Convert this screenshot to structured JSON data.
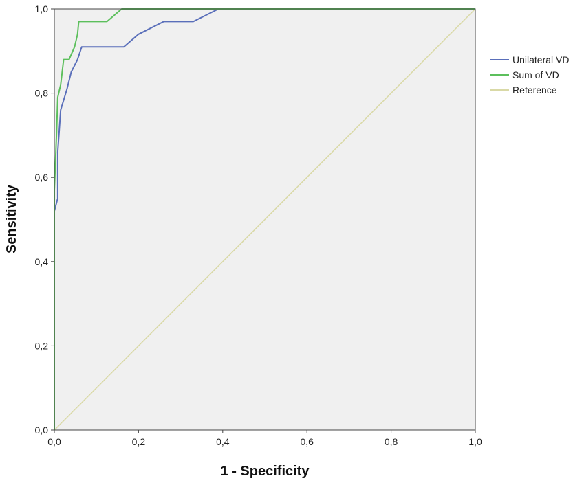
{
  "chart_data": {
    "type": "line",
    "title": "",
    "xlabel": "1 - Specificity",
    "ylabel": "Sensitivity",
    "xlim": [
      0,
      1
    ],
    "ylim": [
      0,
      1
    ],
    "x_ticks": [
      "0,0",
      "0,2",
      "0,4",
      "0,6",
      "0,8",
      "1,0"
    ],
    "y_ticks": [
      "0,0",
      "0,2",
      "0,4",
      "0,6",
      "0,8",
      "1,0"
    ],
    "grid": false,
    "plot_background": "#f0f0f0",
    "legend_position": "right",
    "series": [
      {
        "name": "Unilateral VD",
        "color": "#5a6fba",
        "points": [
          [
            0,
            0
          ],
          [
            0,
            0.52
          ],
          [
            0.008,
            0.55
          ],
          [
            0.008,
            0.66
          ],
          [
            0.015,
            0.76
          ],
          [
            0.03,
            0.81
          ],
          [
            0.04,
            0.85
          ],
          [
            0.055,
            0.88
          ],
          [
            0.065,
            0.91
          ],
          [
            0.165,
            0.91
          ],
          [
            0.2,
            0.94
          ],
          [
            0.26,
            0.97
          ],
          [
            0.33,
            0.97
          ],
          [
            0.39,
            1.0
          ],
          [
            1.0,
            1.0
          ]
        ]
      },
      {
        "name": "Sum of VD",
        "color": "#5cbf5c",
        "points": [
          [
            0,
            0
          ],
          [
            0,
            0.57
          ],
          [
            0.005,
            0.7
          ],
          [
            0.008,
            0.79
          ],
          [
            0.015,
            0.82
          ],
          [
            0.022,
            0.88
          ],
          [
            0.035,
            0.88
          ],
          [
            0.048,
            0.91
          ],
          [
            0.055,
            0.94
          ],
          [
            0.058,
            0.97
          ],
          [
            0.125,
            0.97
          ],
          [
            0.16,
            1.0
          ],
          [
            1.0,
            1.0
          ]
        ]
      },
      {
        "name": "Reference",
        "color": "#d9d9a6",
        "points": [
          [
            0,
            0
          ],
          [
            1,
            1
          ]
        ]
      }
    ]
  }
}
